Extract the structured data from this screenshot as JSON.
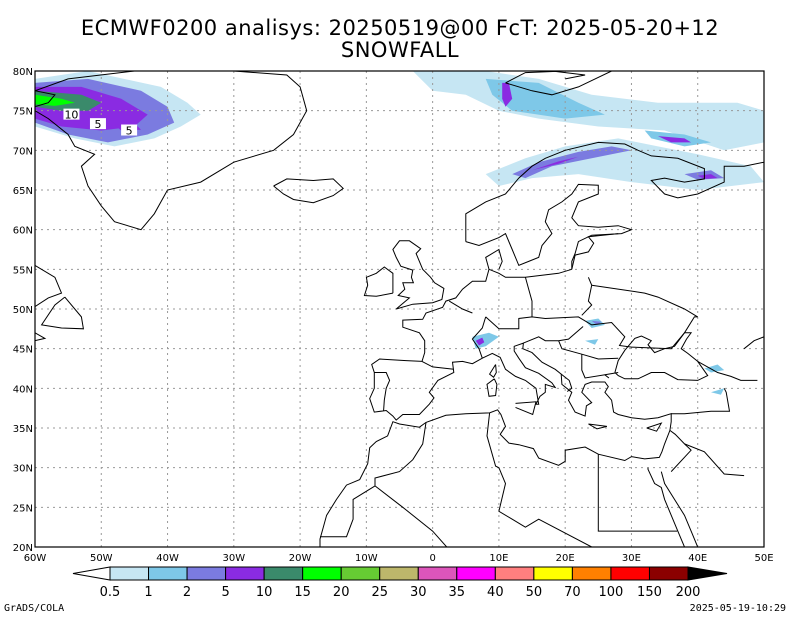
{
  "title_line1": "ECMWF0200 analisys: 20250519@00 FcT: 2025-05-20+12",
  "title_line2": "SNOWFALL",
  "lat_labels": [
    "80N",
    "75N",
    "70N",
    "65N",
    "60N",
    "55N",
    "50N",
    "45N",
    "40N",
    "35N",
    "30N",
    "25N",
    "20N"
  ],
  "lon_labels": [
    "60W",
    "50W",
    "40W",
    "30W",
    "20W",
    "10W",
    "0",
    "10E",
    "20E",
    "30E",
    "40E",
    "50E"
  ],
  "contour_labels": [
    {
      "text": "10",
      "lon": -54.5,
      "lat": 74.5
    },
    {
      "text": "5",
      "lon": -50.5,
      "lat": 73.3
    },
    {
      "text": "5",
      "lon": -45.8,
      "lat": 72.5
    }
  ],
  "colorbar": {
    "labels": [
      "0.5",
      "1",
      "2",
      "5",
      "10",
      "15",
      "20",
      "25",
      "30",
      "35",
      "40",
      "50",
      "70",
      "100",
      "150",
      "200"
    ],
    "colors": [
      "#ffffff",
      "#c6e6f3",
      "#7ec8e8",
      "#7b7be0",
      "#8a2be2",
      "#3a8a6b",
      "#00ff00",
      "#66cc33",
      "#bdb76b",
      "#dd55bb",
      "#ff00ff",
      "#ff7f7f",
      "#ffff00",
      "#ff8000",
      "#ff0000",
      "#8b0000",
      "#000000"
    ]
  },
  "footer_left": "GrADS/COLA",
  "footer_right": "2025-05-19-10:29"
}
